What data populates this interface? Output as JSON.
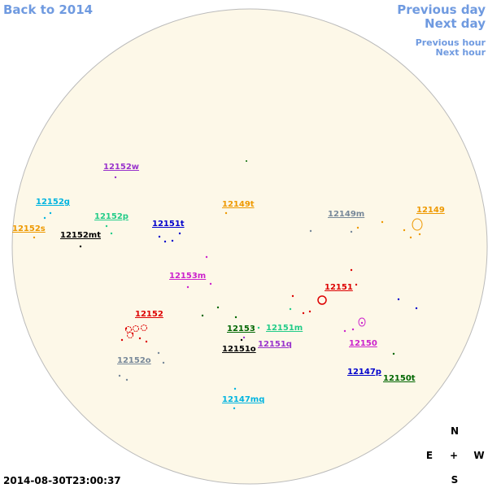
{
  "nav": {
    "back": "Back to 2014",
    "previous_day": "Previous day",
    "next_day": "Next day",
    "previous_hour": "Previous hour",
    "next_hour": "Next hour"
  },
  "regions": [
    {
      "label": "12152w",
      "color": "#9933cc"
    },
    {
      "label": "12152g",
      "color": "#00b4e0"
    },
    {
      "label": "12152p",
      "color": "#22cc88"
    },
    {
      "label": "12152s",
      "color": "#ee9900"
    },
    {
      "label": "12152mt",
      "color": "#000000"
    },
    {
      "label": "12151t",
      "color": "#0000cc"
    },
    {
      "label": "12149t",
      "color": "#ee9900"
    },
    {
      "label": "12149m",
      "color": "#778899"
    },
    {
      "label": "12149",
      "color": "#ee9900"
    },
    {
      "label": "12153m",
      "color": "#cc22cc"
    },
    {
      "label": "12151",
      "color": "#dd0000"
    },
    {
      "label": "12152",
      "color": "#dd0000"
    },
    {
      "label": "12153",
      "color": "#006600"
    },
    {
      "label": "12151m",
      "color": "#22cc88"
    },
    {
      "label": "12151q",
      "color": "#9933cc"
    },
    {
      "label": "12150",
      "color": "#cc22cc"
    },
    {
      "label": "12151o",
      "color": "#000000"
    },
    {
      "label": "12152o",
      "color": "#778899"
    },
    {
      "label": "12147p",
      "color": "#0000cc"
    },
    {
      "label": "12150t",
      "color": "#006600"
    },
    {
      "label": "12147mq",
      "color": "#00b4e0"
    }
  ],
  "compass": {
    "north": "N",
    "east": "E",
    "center": "+",
    "west": "W",
    "south": "S"
  },
  "timestamp": "2014-08-30T23:00:37"
}
